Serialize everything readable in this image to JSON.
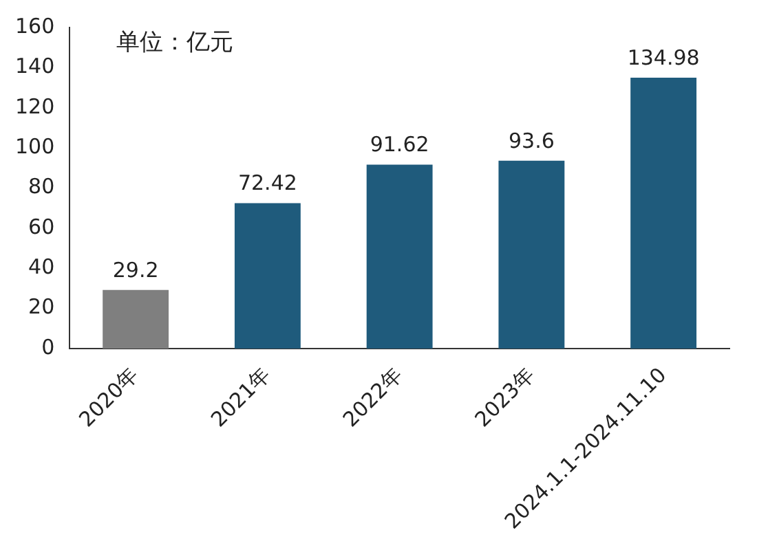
{
  "chart_data": {
    "type": "bar",
    "annotations": [
      "单位：亿元"
    ],
    "categories": [
      "2020年",
      "2021年",
      "2022年",
      "2023年",
      "2024.1.1-2024.11.10"
    ],
    "values": [
      29.2,
      72.42,
      91.62,
      93.6,
      134.98
    ],
    "colors": [
      "#7f7f7f",
      "#1f5b7c",
      "#1f5b7c",
      "#1f5b7c",
      "#1f5b7c"
    ],
    "ylim": [
      0,
      160
    ],
    "yticks": [
      0,
      20,
      40,
      60,
      80,
      100,
      120,
      140,
      160
    ],
    "grid": false,
    "legend": false,
    "data_labels": true
  }
}
